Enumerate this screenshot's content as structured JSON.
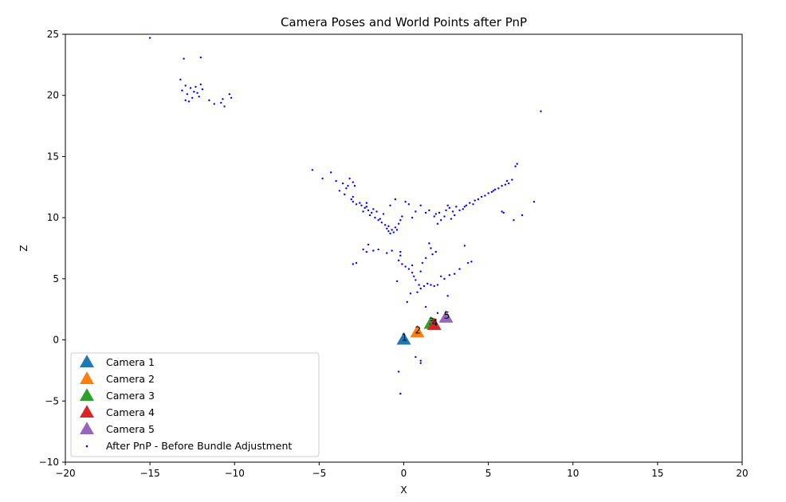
{
  "chart_data": {
    "type": "scatter",
    "title": "Camera Poses and World Points after PnP",
    "xlabel": "X",
    "ylabel": "Z",
    "xlim": [
      -20,
      20
    ],
    "ylim": [
      -10,
      25
    ],
    "xticks": [
      -20,
      -15,
      -10,
      -5,
      0,
      5,
      10,
      15,
      20
    ],
    "yticks": [
      -10,
      -5,
      0,
      5,
      10,
      15,
      20,
      25
    ],
    "grid": false,
    "legend_position": "lower-left",
    "cameras": [
      {
        "name": "Camera 1",
        "label": "1",
        "x": 0.0,
        "z": 0.0,
        "color": "#1f77b4"
      },
      {
        "name": "Camera 2",
        "label": "2",
        "x": 0.8,
        "z": 0.6,
        "color": "#ff7f0e"
      },
      {
        "name": "Camera 3",
        "label": "3",
        "x": 1.6,
        "z": 1.3,
        "color": "#2ca02c"
      },
      {
        "name": "Camera 4",
        "label": "4",
        "x": 1.8,
        "z": 1.2,
        "color": "#d62728"
      },
      {
        "name": "Camera 5",
        "label": "5",
        "x": 2.5,
        "z": 1.8,
        "color": "#9467bd"
      }
    ],
    "points_series": {
      "name": "After PnP - Before Bundle Adjustment",
      "color": "#0000ff",
      "points": [
        [
          -15,
          24.7
        ],
        [
          -13,
          23
        ],
        [
          -12,
          23.1
        ],
        [
          -13.2,
          21.3
        ],
        [
          -12.9,
          20.8
        ],
        [
          -12.6,
          20.6
        ],
        [
          -12.4,
          20.3
        ],
        [
          -12.8,
          20.1
        ],
        [
          -12.5,
          19.8
        ],
        [
          -13.1,
          20.4
        ],
        [
          -12.2,
          20.2
        ],
        [
          -12.7,
          19.5
        ],
        [
          -12,
          20.9
        ],
        [
          -11.5,
          19.6
        ],
        [
          -11.2,
          19.3
        ],
        [
          -10.8,
          19.4
        ],
        [
          -10.6,
          19.1
        ],
        [
          -10.7,
          19.7
        ],
        [
          -10.3,
          20.1
        ],
        [
          -12.3,
          20.7
        ],
        [
          -12.9,
          19.6
        ],
        [
          -12.1,
          19.9
        ],
        [
          -11.9,
          20.5
        ],
        [
          -10.2,
          19.8
        ],
        [
          -5.4,
          13.9
        ],
        [
          -4.8,
          13.2
        ],
        [
          -4.3,
          13.7
        ],
        [
          -4.0,
          13.0
        ],
        [
          -3.6,
          12.8
        ],
        [
          -3.3,
          12.6
        ],
        [
          -3.0,
          12.9
        ],
        [
          -3.4,
          12.4
        ],
        [
          -3.8,
          12.2
        ],
        [
          -3.5,
          11.9
        ],
        [
          -3.0,
          11.7
        ],
        [
          -3.1,
          11.5
        ],
        [
          -3.0,
          11.3
        ],
        [
          -2.8,
          11.1
        ],
        [
          -2.5,
          11.0
        ],
        [
          -2.3,
          10.8
        ],
        [
          -2.1,
          10.6
        ],
        [
          -1.9,
          10.4
        ],
        [
          -2.0,
          10.2
        ],
        [
          -1.7,
          10.0
        ],
        [
          -1.5,
          9.8
        ],
        [
          -1.3,
          9.6
        ],
        [
          -1.1,
          9.4
        ],
        [
          -1.0,
          9.1
        ],
        [
          -0.9,
          8.9
        ],
        [
          -0.8,
          8.7
        ],
        [
          -0.7,
          9.0
        ],
        [
          -0.6,
          8.8
        ],
        [
          -0.5,
          9.2
        ],
        [
          -0.4,
          9.0
        ],
        [
          -0.3,
          9.5
        ],
        [
          -0.2,
          9.8
        ],
        [
          -0.1,
          10.1
        ],
        [
          0.1,
          11.3
        ],
        [
          0.3,
          11.1
        ],
        [
          -0.5,
          11.5
        ],
        [
          -0.8,
          11.0
        ],
        [
          -1.2,
          10.3
        ],
        [
          -1.6,
          10.5
        ],
        [
          -2.2,
          10.9
        ],
        [
          -2.6,
          11.2
        ],
        [
          -2.4,
          10.5
        ],
        [
          -1.8,
          10.7
        ],
        [
          -3.2,
          13.2
        ],
        [
          -2.9,
          12.6
        ],
        [
          -2.2,
          11.2
        ],
        [
          -1.4,
          9.9
        ],
        [
          -0.9,
          9.3
        ],
        [
          0.5,
          10.0
        ],
        [
          0.7,
          10.5
        ],
        [
          1.0,
          11.0
        ],
        [
          1.5,
          10.6
        ],
        [
          1.9,
          10.3
        ],
        [
          2.1,
          10.4
        ],
        [
          2.4,
          10.1
        ],
        [
          2.7,
          10.8
        ],
        [
          2.9,
          10.5
        ],
        [
          3.1,
          10.9
        ],
        [
          3.3,
          10.6
        ],
        [
          2.6,
          11.0
        ],
        [
          3.0,
          10.2
        ],
        [
          2.2,
          9.8
        ],
        [
          2.0,
          9.5
        ],
        [
          1.8,
          10.1
        ],
        [
          3.5,
          10.7
        ],
        [
          3.7,
          11.0
        ],
        [
          3.9,
          11.2
        ],
        [
          4.1,
          11.1
        ],
        [
          4.4,
          11.5
        ],
        [
          4.6,
          11.7
        ],
        [
          4.8,
          11.8
        ],
        [
          5.0,
          12.0
        ],
        [
          5.2,
          12.1
        ],
        [
          5.4,
          12.3
        ],
        [
          5.6,
          12.4
        ],
        [
          5.8,
          12.6
        ],
        [
          6.0,
          12.7
        ],
        [
          6.2,
          12.8
        ],
        [
          6.4,
          13.1
        ],
        [
          6.6,
          14.2
        ],
        [
          6.7,
          14.4
        ],
        [
          6.5,
          9.8
        ],
        [
          7.0,
          10.2
        ],
        [
          7.7,
          11.3
        ],
        [
          8.1,
          18.7
        ],
        [
          5.9,
          10.4
        ],
        [
          5.8,
          10.5
        ],
        [
          6.1,
          13.0
        ],
        [
          5.3,
          12.2
        ],
        [
          4.2,
          11.4
        ],
        [
          3.6,
          10.9
        ],
        [
          2.5,
          10.6
        ],
        [
          1.3,
          10.4
        ],
        [
          2.8,
          9.9
        ],
        [
          -3.0,
          6.2
        ],
        [
          -2.8,
          6.3
        ],
        [
          -2.2,
          7.2
        ],
        [
          -2.4,
          7.4
        ],
        [
          -2.1,
          7.8
        ],
        [
          -1.8,
          7.3
        ],
        [
          -1.5,
          7.4
        ],
        [
          -1.0,
          7.1
        ],
        [
          -0.7,
          7.3
        ],
        [
          -0.2,
          7.2
        ],
        [
          -0.2,
          6.9
        ],
        [
          -0.3,
          6.5
        ],
        [
          -0.1,
          6.2
        ],
        [
          0.1,
          6.0
        ],
        [
          0.3,
          5.8
        ],
        [
          0.5,
          5.5
        ],
        [
          0.6,
          5.2
        ],
        [
          0.7,
          4.9
        ],
        [
          0.9,
          4.5
        ],
        [
          1.0,
          4.2
        ],
        [
          1.2,
          4.4
        ],
        [
          1.4,
          4.6
        ],
        [
          1.6,
          4.5
        ],
        [
          1.8,
          4.4
        ],
        [
          2.0,
          4.5
        ],
        [
          1.5,
          7.9
        ],
        [
          1.6,
          7.5
        ],
        [
          1.7,
          7.0
        ],
        [
          1.3,
          6.7
        ],
        [
          1.1,
          6.3
        ],
        [
          1.9,
          7.2
        ],
        [
          2.4,
          5.0
        ],
        [
          2.7,
          5.3
        ],
        [
          3.0,
          5.4
        ],
        [
          3.3,
          5.8
        ],
        [
          3.6,
          7.7
        ],
        [
          3.8,
          6.3
        ],
        [
          4.0,
          6.4
        ],
        [
          0.4,
          3.8
        ],
        [
          0.8,
          3.9
        ],
        [
          -0.4,
          4.8
        ],
        [
          0.5,
          6.1
        ],
        [
          2.2,
          5.2
        ],
        [
          1.0,
          5.6
        ],
        [
          1.3,
          2.7
        ],
        [
          0.7,
          -1.4
        ],
        [
          1.0,
          -1.7
        ],
        [
          1.0,
          -1.9
        ],
        [
          -0.3,
          -2.6
        ],
        [
          -0.2,
          -4.4
        ],
        [
          2.6,
          3.6
        ],
        [
          2.0,
          2.2
        ],
        [
          0.2,
          3.1
        ]
      ]
    }
  }
}
